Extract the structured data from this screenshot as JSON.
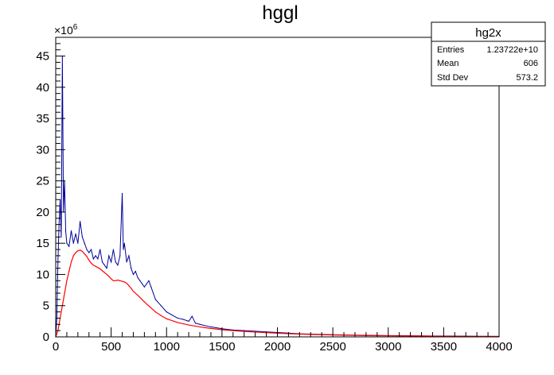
{
  "chart_data": {
    "type": "histogram",
    "title": "hggl",
    "xlabel": "",
    "ylabel": "",
    "x_range": [
      0,
      4000
    ],
    "y_range": [
      0,
      48
    ],
    "y_multiplier": "×10",
    "y_multiplier_exponent": "6",
    "x_ticks": [
      "0",
      "500",
      "1000",
      "1500",
      "2000",
      "2500",
      "3000",
      "3500",
      "4000"
    ],
    "y_ticks": [
      "0",
      "5",
      "10",
      "15",
      "20",
      "25",
      "30",
      "35",
      "40",
      "45"
    ],
    "grid": false,
    "series": [
      {
        "color": "#000099",
        "points": [
          [
            0,
            0
          ],
          [
            10,
            3
          ],
          [
            20,
            12
          ],
          [
            30,
            18
          ],
          [
            40,
            22
          ],
          [
            50,
            16
          ],
          [
            60,
            45
          ],
          [
            70,
            20
          ],
          [
            80,
            25
          ],
          [
            90,
            17
          ],
          [
            100,
            15
          ],
          [
            120,
            14.5
          ],
          [
            140,
            17
          ],
          [
            160,
            15
          ],
          [
            180,
            16.5
          ],
          [
            200,
            15
          ],
          [
            220,
            18.5
          ],
          [
            240,
            16
          ],
          [
            260,
            15
          ],
          [
            280,
            14
          ],
          [
            300,
            13.5
          ],
          [
            320,
            14
          ],
          [
            340,
            12.5
          ],
          [
            360,
            13
          ],
          [
            380,
            12.5
          ],
          [
            400,
            14
          ],
          [
            420,
            12
          ],
          [
            440,
            11.5
          ],
          [
            460,
            11
          ],
          [
            480,
            13
          ],
          [
            500,
            12
          ],
          [
            520,
            14
          ],
          [
            540,
            12
          ],
          [
            560,
            11.5
          ],
          [
            580,
            13
          ],
          [
            600,
            23
          ],
          [
            610,
            14
          ],
          [
            620,
            15
          ],
          [
            640,
            12
          ],
          [
            660,
            13
          ],
          [
            680,
            11
          ],
          [
            700,
            10
          ],
          [
            720,
            10.5
          ],
          [
            740,
            9.5
          ],
          [
            760,
            9
          ],
          [
            780,
            8.5
          ],
          [
            800,
            8
          ],
          [
            820,
            8.5
          ],
          [
            840,
            9
          ],
          [
            860,
            8
          ],
          [
            880,
            7
          ],
          [
            900,
            6
          ],
          [
            950,
            5
          ],
          [
            1000,
            4
          ],
          [
            1050,
            3.5
          ],
          [
            1100,
            3
          ],
          [
            1150,
            2.8
          ],
          [
            1200,
            2.5
          ],
          [
            1230,
            3.3
          ],
          [
            1260,
            2.2
          ],
          [
            1300,
            2
          ],
          [
            1400,
            1.6
          ],
          [
            1500,
            1.3
          ],
          [
            1600,
            1.1
          ],
          [
            1700,
            1
          ],
          [
            1800,
            0.9
          ],
          [
            1900,
            0.8
          ],
          [
            2000,
            0.7
          ],
          [
            2100,
            0.6
          ],
          [
            2200,
            0.5
          ],
          [
            2400,
            0.4
          ],
          [
            2600,
            0.3
          ],
          [
            2800,
            0.25
          ],
          [
            3000,
            0.2
          ],
          [
            3200,
            0.18
          ],
          [
            3400,
            0.15
          ],
          [
            3600,
            0.12
          ],
          [
            3800,
            0.1
          ],
          [
            4000,
            0.08
          ]
        ]
      },
      {
        "color": "#ff0000",
        "points": [
          [
            0,
            0
          ],
          [
            20,
            1
          ],
          [
            40,
            3
          ],
          [
            60,
            5
          ],
          [
            80,
            7
          ],
          [
            100,
            9
          ],
          [
            120,
            10.5
          ],
          [
            140,
            12
          ],
          [
            160,
            13
          ],
          [
            180,
            13.5
          ],
          [
            200,
            13.8
          ],
          [
            220,
            13.9
          ],
          [
            240,
            13.7
          ],
          [
            260,
            13.3
          ],
          [
            280,
            12.9
          ],
          [
            300,
            12.3
          ],
          [
            320,
            11.8
          ],
          [
            340,
            11.5
          ],
          [
            360,
            11.3
          ],
          [
            380,
            11.1
          ],
          [
            400,
            10.9
          ],
          [
            420,
            10.6
          ],
          [
            440,
            10.3
          ],
          [
            460,
            10
          ],
          [
            480,
            9.7
          ],
          [
            500,
            9.3
          ],
          [
            520,
            9
          ],
          [
            540,
            9
          ],
          [
            560,
            9.1
          ],
          [
            580,
            9
          ],
          [
            600,
            8.9
          ],
          [
            620,
            8.8
          ],
          [
            640,
            8.6
          ],
          [
            660,
            8.2
          ],
          [
            680,
            7.8
          ],
          [
            700,
            7.3
          ],
          [
            750,
            6.5
          ],
          [
            800,
            5.6
          ],
          [
            850,
            4.8
          ],
          [
            900,
            4
          ],
          [
            950,
            3.4
          ],
          [
            1000,
            2.9
          ],
          [
            1100,
            2.3
          ],
          [
            1200,
            1.9
          ],
          [
            1300,
            1.6
          ],
          [
            1400,
            1.35
          ],
          [
            1500,
            1.15
          ],
          [
            1600,
            1
          ],
          [
            1700,
            0.88
          ],
          [
            1800,
            0.78
          ],
          [
            1900,
            0.68
          ],
          [
            2000,
            0.58
          ],
          [
            2200,
            0.45
          ],
          [
            2400,
            0.35
          ],
          [
            2600,
            0.27
          ],
          [
            2800,
            0.21
          ],
          [
            3000,
            0.17
          ],
          [
            3200,
            0.14
          ],
          [
            3400,
            0.11
          ],
          [
            3600,
            0.09
          ],
          [
            3800,
            0.07
          ],
          [
            4000,
            0.06
          ]
        ]
      }
    ]
  },
  "stats": {
    "title": "hg2x",
    "rows": [
      {
        "label": "Entries",
        "value": "1.23722e+10"
      },
      {
        "label": "Mean",
        "value": "606"
      },
      {
        "label": "Std Dev",
        "value": "573.2"
      }
    ]
  }
}
